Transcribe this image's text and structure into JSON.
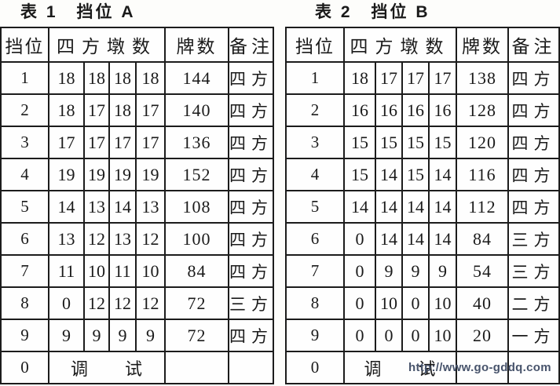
{
  "watermark": "http://www.go-gddq.com",
  "tables": [
    {
      "title": "表 1　挡位 A",
      "headers": {
        "gear": "挡位",
        "piers": "四方墩数",
        "cards": "牌数",
        "remark": "备注"
      },
      "rows": [
        {
          "gear": "1",
          "piers": [
            "18",
            "18",
            "18",
            "18"
          ],
          "cards": "144",
          "remark": "四方"
        },
        {
          "gear": "2",
          "piers": [
            "18",
            "17",
            "18",
            "17"
          ],
          "cards": "140",
          "remark": "四方"
        },
        {
          "gear": "3",
          "piers": [
            "17",
            "17",
            "17",
            "17"
          ],
          "cards": "136",
          "remark": "四方"
        },
        {
          "gear": "4",
          "piers": [
            "19",
            "19",
            "19",
            "19"
          ],
          "cards": "152",
          "remark": "四方"
        },
        {
          "gear": "5",
          "piers": [
            "14",
            "13",
            "14",
            "13"
          ],
          "cards": "108",
          "remark": "四方"
        },
        {
          "gear": "6",
          "piers": [
            "13",
            "12",
            "13",
            "12"
          ],
          "cards": "100",
          "remark": "四方"
        },
        {
          "gear": "7",
          "piers": [
            "11",
            "10",
            "11",
            "10"
          ],
          "cards": "84",
          "remark": "四方"
        },
        {
          "gear": "8",
          "piers": [
            "0",
            "12",
            "12",
            "12"
          ],
          "cards": "72",
          "remark": "三方"
        },
        {
          "gear": "9",
          "piers": [
            "9",
            "9",
            "9",
            "9"
          ],
          "cards": "72",
          "remark": "四方"
        },
        {
          "gear": "0",
          "label": "调　　试",
          "cards": "",
          "remark": ""
        }
      ]
    },
    {
      "title": "表 2　挡位 B",
      "headers": {
        "gear": "挡位",
        "piers": "四方墩数",
        "cards": "牌数",
        "remark": "备注"
      },
      "rows": [
        {
          "gear": "1",
          "piers": [
            "18",
            "17",
            "17",
            "17"
          ],
          "cards": "138",
          "remark": "四方"
        },
        {
          "gear": "2",
          "piers": [
            "16",
            "16",
            "16",
            "16"
          ],
          "cards": "128",
          "remark": "四方"
        },
        {
          "gear": "3",
          "piers": [
            "15",
            "15",
            "15",
            "15"
          ],
          "cards": "120",
          "remark": "四方"
        },
        {
          "gear": "4",
          "piers": [
            "15",
            "14",
            "15",
            "14"
          ],
          "cards": "116",
          "remark": "四方"
        },
        {
          "gear": "5",
          "piers": [
            "14",
            "14",
            "14",
            "14"
          ],
          "cards": "112",
          "remark": "四方"
        },
        {
          "gear": "6",
          "piers": [
            "0",
            "14",
            "14",
            "14"
          ],
          "cards": "84",
          "remark": "三方"
        },
        {
          "gear": "7",
          "piers": [
            "0",
            "9",
            "9",
            "9"
          ],
          "cards": "54",
          "remark": "三方"
        },
        {
          "gear": "8",
          "piers": [
            "0",
            "10",
            "0",
            "10"
          ],
          "cards": "40",
          "remark": "二方"
        },
        {
          "gear": "9",
          "piers": [
            "0",
            "0",
            "0",
            "10"
          ],
          "cards": "20",
          "remark": "一方"
        },
        {
          "gear": "0",
          "label": "调　　试",
          "cards": "",
          "remark": ""
        }
      ]
    }
  ]
}
